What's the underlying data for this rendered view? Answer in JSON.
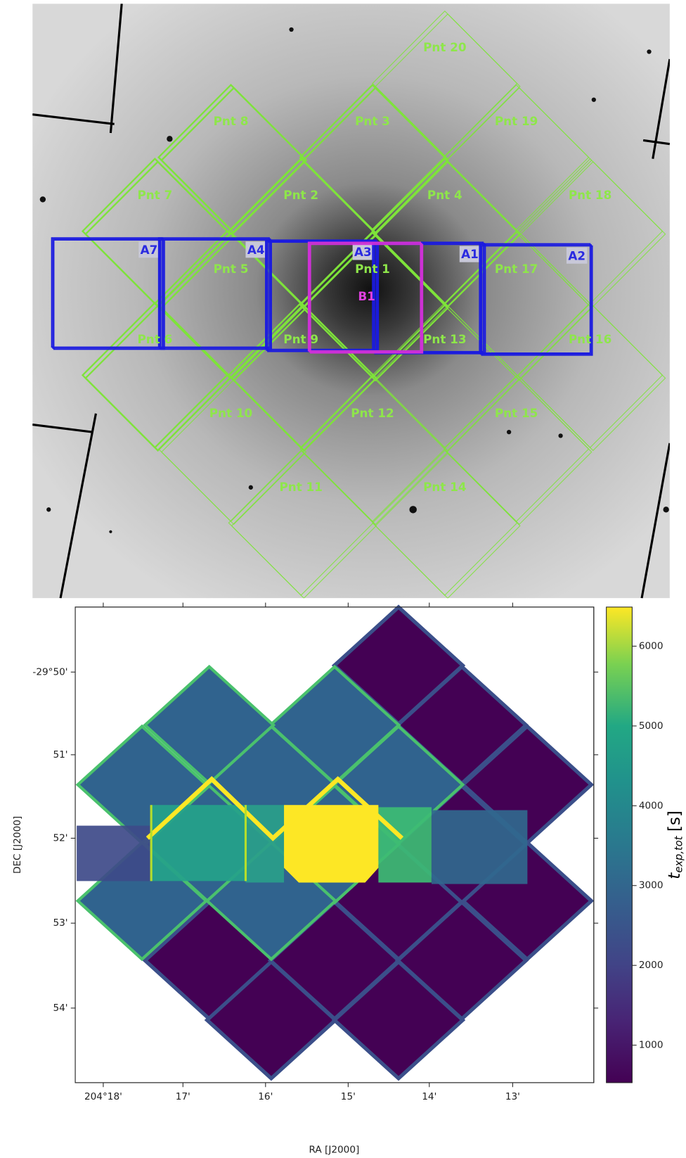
{
  "top_panel": {
    "pointings": [
      "Pnt 1",
      "Pnt 2",
      "Pnt 3",
      "Pnt 4",
      "Pnt 5",
      "Pnt 6",
      "Pnt 7",
      "Pnt 8",
      "Pnt 9",
      "Pnt 10",
      "Pnt 11",
      "Pnt 12",
      "Pnt 13",
      "Pnt 14",
      "Pnt 15",
      "Pnt 16",
      "Pnt 17",
      "Pnt 18",
      "Pnt 19",
      "Pnt 20"
    ],
    "a_frames": [
      "A7",
      "A4",
      "A3",
      "A1",
      "A2"
    ],
    "b_frame": "B1"
  },
  "bottom_panel": {
    "x_ticks": [
      "204°18'",
      "17'",
      "16'",
      "15'",
      "14'",
      "13'"
    ],
    "y_ticks": [
      "-29°50'",
      "51'",
      "52'",
      "53'",
      "54'"
    ],
    "x_label": "RA [J2000]",
    "y_label": "DEC [J2000]",
    "colorbar": {
      "range": [
        530,
        6490
      ],
      "ticks": [
        1000,
        2000,
        3000,
        4000,
        5000,
        6000
      ],
      "label": {
        "symbol": "t",
        "subscript": "exp,tot",
        "unit": "[s]"
      }
    }
  }
}
